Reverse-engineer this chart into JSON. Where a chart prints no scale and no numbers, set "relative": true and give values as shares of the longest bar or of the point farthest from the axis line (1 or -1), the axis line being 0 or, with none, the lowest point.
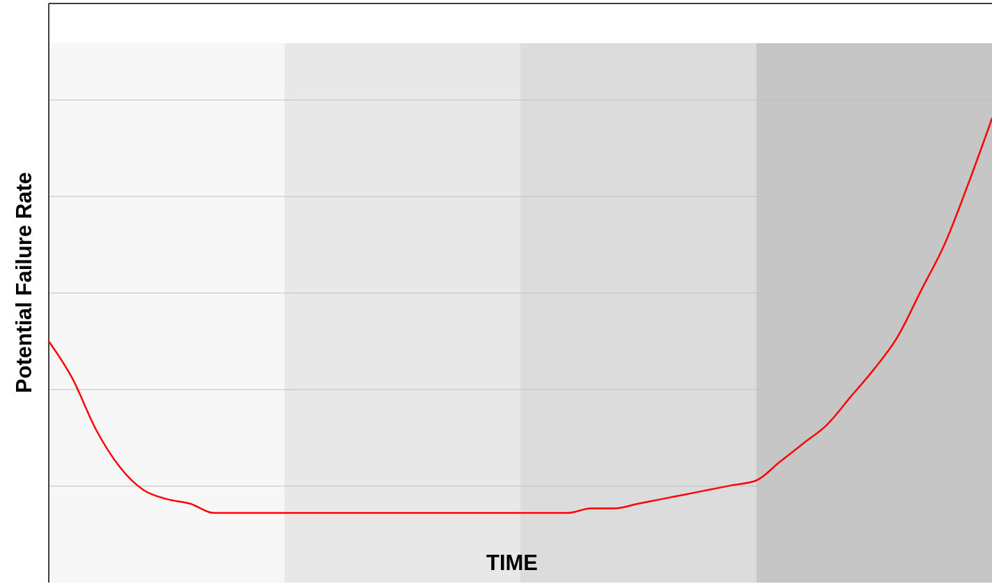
{
  "chart_data": {
    "type": "line",
    "relative": true,
    "ylabel": "Potential Failure Rate",
    "xlabel": "TIME",
    "grid": "y",
    "categories": [
      null,
      null,
      null,
      null,
      null,
      null,
      null,
      null,
      null,
      null,
      null,
      null,
      null,
      null,
      null,
      null,
      null,
      null,
      null,
      null,
      null,
      null,
      null,
      null,
      null,
      null,
      null,
      null,
      null,
      null,
      null,
      null,
      null,
      null,
      null,
      null,
      null,
      null,
      null,
      null,
      null
    ],
    "series": [
      {
        "color": "#ff0000",
        "values": [
          0.52,
          0.44,
          0.33,
          0.25,
          0.2,
          0.18,
          0.17,
          0.15,
          0.15,
          0.15,
          0.15,
          0.15,
          0.15,
          0.15,
          0.15,
          0.15,
          0.15,
          0.15,
          0.15,
          0.15,
          0.15,
          0.15,
          0.15,
          0.16,
          0.16,
          0.17,
          0.18,
          0.19,
          0.2,
          0.21,
          0.22,
          0.26,
          0.3,
          0.34,
          0.4,
          0.46,
          0.53,
          0.63,
          0.73,
          0.86,
          1
        ]
      }
    ]
  }
}
